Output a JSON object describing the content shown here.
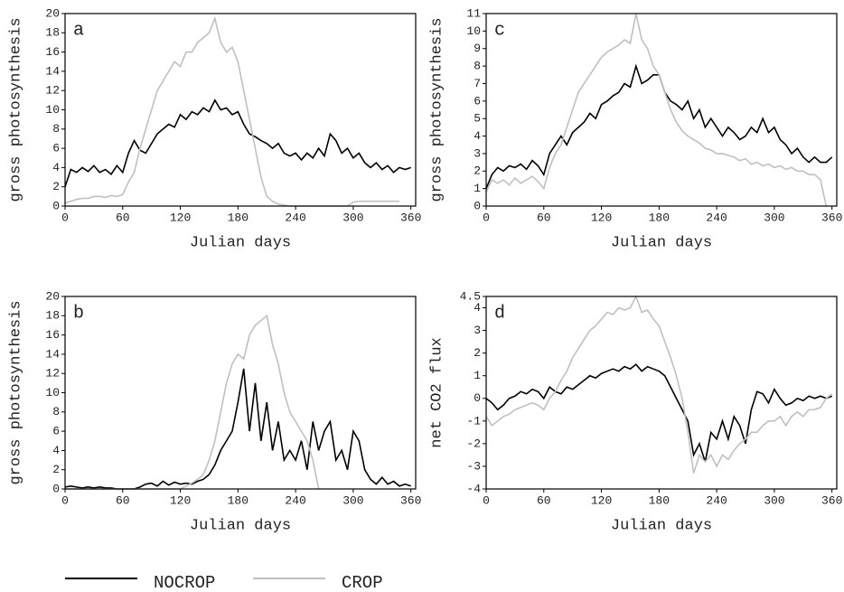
{
  "chart_data": [
    {
      "type": "line",
      "label": "a",
      "xlabel": "Julian days",
      "ylabel": "gross photosynthesis",
      "xlim": [
        0,
        365
      ],
      "xticks": [
        0,
        60,
        120,
        180,
        240,
        300,
        360
      ],
      "ylim": [
        0,
        20
      ],
      "yticks": [
        0,
        2,
        4,
        6,
        8,
        10,
        12,
        14,
        16,
        18,
        20
      ],
      "x": [
        0,
        6,
        12,
        18,
        24,
        30,
        36,
        42,
        48,
        54,
        60,
        66,
        72,
        78,
        84,
        90,
        96,
        102,
        108,
        114,
        120,
        126,
        132,
        138,
        144,
        150,
        156,
        162,
        168,
        174,
        180,
        186,
        192,
        198,
        204,
        210,
        216,
        222,
        228,
        234,
        240,
        246,
        252,
        258,
        264,
        270,
        276,
        282,
        288,
        294,
        300,
        306,
        312,
        318,
        324,
        330,
        336,
        342,
        348,
        354,
        360
      ],
      "series": [
        {
          "name": "NOCROP",
          "color": "#000000",
          "values": [
            2,
            3.8,
            3.5,
            4,
            3.6,
            4.2,
            3.5,
            3.8,
            3.3,
            4.2,
            3.5,
            5.5,
            6.8,
            5.8,
            5.5,
            6.5,
            7.5,
            8,
            8.5,
            8.2,
            9.5,
            9,
            9.8,
            9.5,
            10.2,
            9.8,
            11,
            10,
            10.2,
            9.5,
            9.8,
            8.5,
            7.5,
            7.2,
            6.8,
            6.5,
            6,
            6.5,
            5.5,
            5.2,
            5.5,
            4.8,
            5.5,
            5,
            6,
            5.2,
            7.5,
            6.8,
            5.5,
            6,
            5,
            5.5,
            4.5,
            4,
            4.5,
            3.8,
            4.2,
            3.5,
            4,
            3.8,
            4
          ]
        },
        {
          "name": "CROP",
          "color": "#c0c0c0",
          "values": [
            0.3,
            0.5,
            0.7,
            0.8,
            0.8,
            1,
            1,
            0.9,
            1.1,
            1,
            1.2,
            2.5,
            3.5,
            6,
            8,
            10,
            12,
            13,
            14,
            15,
            14.5,
            16,
            16,
            17,
            17.5,
            18,
            19.5,
            17,
            16,
            16.5,
            15,
            12,
            9,
            6,
            3,
            1,
            0.5,
            0.2,
            0.1,
            0,
            0,
            0,
            0,
            0,
            0,
            0,
            0,
            0,
            0,
            0,
            0.4,
            0.5,
            0.5,
            0.5,
            0.5,
            0.5,
            0.5,
            0.5,
            0.5,
            null,
            null
          ]
        }
      ]
    },
    {
      "type": "line",
      "label": "b",
      "xlabel": "Julian days",
      "ylabel": "gross photosynthesis",
      "xlim": [
        0,
        365
      ],
      "xticks": [
        0,
        60,
        120,
        180,
        240,
        300,
        360
      ],
      "ylim": [
        0,
        20
      ],
      "yticks": [
        0,
        2,
        4,
        6,
        8,
        10,
        12,
        14,
        16,
        18,
        20
      ],
      "x": [
        0,
        6,
        12,
        18,
        24,
        30,
        36,
        42,
        48,
        54,
        60,
        66,
        72,
        78,
        84,
        90,
        96,
        102,
        108,
        114,
        120,
        126,
        132,
        138,
        144,
        150,
        156,
        162,
        168,
        174,
        180,
        186,
        192,
        198,
        204,
        210,
        216,
        222,
        228,
        234,
        240,
        246,
        252,
        258,
        264,
        270,
        276,
        282,
        288,
        294,
        300,
        306,
        312,
        318,
        324,
        330,
        336,
        342,
        348,
        354,
        360
      ],
      "series": [
        {
          "name": "NOCROP",
          "color": "#000000",
          "values": [
            0.2,
            0.3,
            0.2,
            0.1,
            0.2,
            0.1,
            0.2,
            0.1,
            0.1,
            0,
            0,
            0,
            0,
            0.2,
            0.5,
            0.6,
            0.3,
            0.8,
            0.4,
            0.7,
            0.5,
            0.6,
            0.5,
            0.8,
            1,
            1.5,
            2.5,
            4,
            5,
            6,
            9,
            12.5,
            6,
            11,
            5,
            9,
            4,
            7,
            3,
            4,
            3,
            5,
            2,
            7,
            4,
            6,
            7,
            3,
            4,
            2,
            6,
            5,
            2,
            1,
            0.5,
            1.2,
            0.5,
            0.8,
            0.3,
            0.5,
            0.3
          ]
        },
        {
          "name": "CROP",
          "color": "#c0c0c0",
          "values": [
            0,
            0,
            0,
            0,
            0,
            0,
            0,
            0,
            0,
            0,
            0,
            0,
            0,
            0,
            0,
            0,
            0,
            0,
            0,
            0,
            0,
            0.3,
            0.6,
            1,
            1.5,
            3,
            5,
            8,
            11,
            13,
            14,
            13.5,
            16,
            17,
            17.5,
            18,
            15,
            13,
            10,
            8,
            7,
            6,
            5,
            3,
            0,
            null,
            null,
            null,
            null,
            null,
            null,
            null,
            null,
            null,
            null,
            null,
            null,
            null,
            null,
            null,
            null
          ]
        }
      ]
    },
    {
      "type": "line",
      "label": "c",
      "xlabel": "Julian days",
      "ylabel": "gross photosynthesis",
      "xlim": [
        0,
        365
      ],
      "xticks": [
        0,
        60,
        120,
        180,
        240,
        300,
        360
      ],
      "ylim": [
        0,
        11
      ],
      "yticks": [
        0,
        1,
        2,
        3,
        4,
        5,
        6,
        7,
        8,
        9,
        10,
        11
      ],
      "x": [
        0,
        6,
        12,
        18,
        24,
        30,
        36,
        42,
        48,
        54,
        60,
        66,
        72,
        78,
        84,
        90,
        96,
        102,
        108,
        114,
        120,
        126,
        132,
        138,
        144,
        150,
        156,
        162,
        168,
        174,
        180,
        186,
        192,
        198,
        204,
        210,
        216,
        222,
        228,
        234,
        240,
        246,
        252,
        258,
        264,
        270,
        276,
        282,
        288,
        294,
        300,
        306,
        312,
        318,
        324,
        330,
        336,
        342,
        348,
        354,
        360
      ],
      "series": [
        {
          "name": "NOCROP",
          "color": "#000000",
          "values": [
            1,
            1.8,
            2.2,
            2,
            2.3,
            2.2,
            2.4,
            2.1,
            2.6,
            2.3,
            1.8,
            3,
            3.5,
            4,
            3.5,
            4.2,
            4.5,
            4.8,
            5.3,
            5,
            5.8,
            6,
            6.3,
            6.5,
            7,
            6.8,
            8,
            7,
            7.2,
            7.5,
            7.5,
            6.5,
            6,
            5.8,
            5.5,
            6,
            5,
            5.5,
            4.5,
            5,
            4.5,
            4,
            4.5,
            4.2,
            3.8,
            4,
            4.5,
            4.2,
            5,
            4.2,
            4.5,
            3.8,
            3.5,
            3,
            3.3,
            2.8,
            2.5,
            2.8,
            2.5,
            2.5,
            2.8
          ]
        },
        {
          "name": "CROP",
          "color": "#c0c0c0",
          "values": [
            0.8,
            1.5,
            1.3,
            1.5,
            1.2,
            1.6,
            1.3,
            1.5,
            1.7,
            1.4,
            1,
            2.2,
            3,
            3.5,
            4.5,
            5.5,
            6.5,
            7,
            7.5,
            8,
            8.5,
            8.8,
            9,
            9.2,
            9.5,
            9.3,
            11,
            9.5,
            9,
            8,
            7.5,
            6.5,
            5.5,
            4.8,
            4.3,
            4,
            3.8,
            3.6,
            3.3,
            3.2,
            3,
            3,
            2.9,
            2.8,
            2.6,
            2.7,
            2.4,
            2.5,
            2.3,
            2.4,
            2.2,
            2.3,
            2.1,
            2.2,
            2,
            2,
            1.8,
            1.8,
            1.5,
            0,
            null
          ]
        }
      ]
    },
    {
      "type": "line",
      "label": "d",
      "xlabel": "Julian days",
      "ylabel": "net CO2 flux",
      "xlim": [
        0,
        365
      ],
      "xticks": [
        0,
        60,
        120,
        180,
        240,
        300,
        360
      ],
      "ylim": [
        -4,
        4.5
      ],
      "yticks": [
        -4,
        -3,
        -2,
        -1,
        0,
        1,
        2,
        3,
        4,
        4.5
      ],
      "x": [
        0,
        6,
        12,
        18,
        24,
        30,
        36,
        42,
        48,
        54,
        60,
        66,
        72,
        78,
        84,
        90,
        96,
        102,
        108,
        114,
        120,
        126,
        132,
        138,
        144,
        150,
        156,
        162,
        168,
        174,
        180,
        186,
        192,
        198,
        204,
        210,
        216,
        222,
        228,
        234,
        240,
        246,
        252,
        258,
        264,
        270,
        276,
        282,
        288,
        294,
        300,
        306,
        312,
        318,
        324,
        330,
        336,
        342,
        348,
        354,
        360
      ],
      "series": [
        {
          "name": "NOCROP",
          "color": "#000000",
          "values": [
            0,
            -0.2,
            -0.5,
            -0.3,
            0,
            0.1,
            0.3,
            0.2,
            0.4,
            0.3,
            0,
            0.5,
            0.3,
            0.2,
            0.5,
            0.4,
            0.6,
            0.8,
            1,
            0.9,
            1.1,
            1.2,
            1.3,
            1.2,
            1.4,
            1.3,
            1.5,
            1.2,
            1.4,
            1.3,
            1.2,
            1,
            0.5,
            0,
            -0.5,
            -1,
            -2.5,
            -2,
            -2.8,
            -1.5,
            -1.8,
            -1,
            -1.8,
            -0.8,
            -1.2,
            -2,
            -0.5,
            0.3,
            0.2,
            -0.2,
            0.4,
            0,
            -0.3,
            -0.2,
            0,
            -0.1,
            0.1,
            0,
            0.1,
            0,
            0.1
          ]
        },
        {
          "name": "CROP",
          "color": "#c0c0c0",
          "values": [
            -0.8,
            -1.2,
            -1,
            -0.8,
            -0.7,
            -0.5,
            -0.4,
            -0.3,
            -0.2,
            -0.3,
            -0.5,
            0,
            0.3,
            0.8,
            1.2,
            1.8,
            2.2,
            2.6,
            3,
            3.2,
            3.5,
            3.8,
            3.7,
            4,
            3.9,
            4,
            4.5,
            3.8,
            3.9,
            3.5,
            3.2,
            2.5,
            1.8,
            1,
            0,
            -1.5,
            -3.3,
            -2.5,
            -2.8,
            -2.5,
            -3,
            -2.5,
            -2.7,
            -2.3,
            -2,
            -1.8,
            -1.5,
            -1.5,
            -1.2,
            -1,
            -1,
            -0.8,
            -1.2,
            -0.8,
            -0.6,
            -0.8,
            -0.5,
            -0.5,
            -0.4,
            0,
            0.2
          ]
        }
      ]
    }
  ]
}
